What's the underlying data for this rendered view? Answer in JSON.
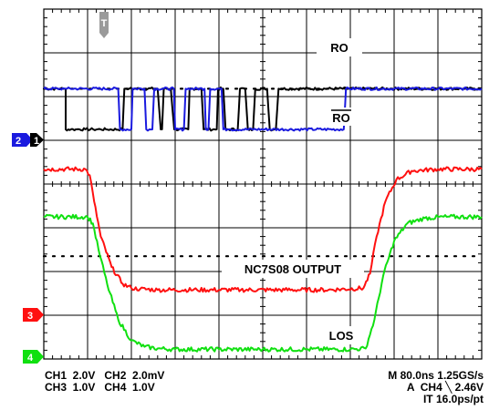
{
  "channel_markers": {
    "ch2": "2",
    "ch1": "1",
    "ch3": "3",
    "ch4": "4"
  },
  "trigger_marker": "T",
  "labels": {
    "ro": "RO",
    "ro_bar": "RO",
    "nc7s08": "NC7S08 OUTPUT",
    "los": "LOS"
  },
  "readout": {
    "left_line1": "CH1  2.0V   CH2  2.0mV",
    "left_line2": "CH3  1.0V   CH4  1.0V",
    "right_line1": "M 80.0ns 1.25GS/s",
    "right_line2": "A  CH4 ╲ 2.46V",
    "right_line3": "IT 16.0ps/pt"
  },
  "colors": {
    "ch1": "#000000",
    "ch2": "#1a1adf",
    "ch3": "#ff1010",
    "ch4": "#10e010",
    "trigger": "#9a9a9a"
  },
  "chart_data": {
    "type": "line",
    "x_divisions": 10,
    "y_divisions": 8,
    "series": [
      {
        "name": "RO",
        "channel": "CH1",
        "color": "#000000",
        "x": [
          0.0,
          0.47,
          0.5,
          0.5,
          0.62,
          0.67,
          0.73,
          0.75,
          0.95,
          1.13,
          1.3,
          1.42,
          1.8,
          1.84,
          1.88,
          1.95,
          2.6,
          2.67,
          2.7,
          2.74,
          2.9,
          2.98,
          3.3,
          3.33,
          3.6,
          3.65,
          3.95,
          3.98,
          4.1,
          4.15,
          4.43,
          4.48,
          4.6,
          4.66,
          4.78,
          4.83,
          5.1,
          5.16,
          5.3,
          5.36,
          10.0
        ],
        "y": [
          6.18,
          6.18,
          6.18,
          5.25,
          5.25,
          5.25,
          5.25,
          5.25,
          5.25,
          5.25,
          5.25,
          5.25,
          5.25,
          6.18,
          6.18,
          6.18,
          6.18,
          5.25,
          5.25,
          6.18,
          6.18,
          5.25,
          5.25,
          6.18,
          6.18,
          5.25,
          5.25,
          6.18,
          6.18,
          5.25,
          5.25,
          6.18,
          6.18,
          5.25,
          5.25,
          6.18,
          6.18,
          5.25,
          5.25,
          6.18,
          6.18
        ]
      },
      {
        "name": "RO",
        "channel": "CH2",
        "color": "#1a1adf",
        "x": [
          0.0,
          0.47,
          0.5,
          0.53,
          1.7,
          1.74,
          2.0,
          2.03,
          2.3,
          2.34,
          2.48,
          2.52,
          2.97,
          3.0,
          3.2,
          3.24,
          3.67,
          3.7,
          3.76,
          3.8,
          4.06,
          4.1,
          4.2,
          4.24,
          6.85,
          6.9,
          10.0
        ],
        "y": [
          6.18,
          6.18,
          6.18,
          6.18,
          6.18,
          5.25,
          5.25,
          6.18,
          6.18,
          5.25,
          5.25,
          6.18,
          6.18,
          5.25,
          5.25,
          6.18,
          6.18,
          5.25,
          5.25,
          6.18,
          6.18,
          5.25,
          5.25,
          5.25,
          5.25,
          6.18,
          6.18
        ]
      },
      {
        "name": "NC7S08 OUTPUT",
        "channel": "CH3",
        "color": "#ff1010",
        "x": [
          0.0,
          0.95,
          1.05,
          1.15,
          1.3,
          1.55,
          1.8,
          2.0,
          2.2,
          2.6,
          3.5,
          4.5,
          5.5,
          6.5,
          7.3,
          7.45,
          7.6,
          7.8,
          8.05,
          8.4,
          9.0,
          10.0
        ],
        "y": [
          4.34,
          4.34,
          4.2,
          3.6,
          2.8,
          2.1,
          1.72,
          1.62,
          1.6,
          1.58,
          1.58,
          1.58,
          1.58,
          1.58,
          1.62,
          1.95,
          2.8,
          3.6,
          4.1,
          4.3,
          4.34,
          4.34
        ]
      },
      {
        "name": "LOS",
        "channel": "CH4",
        "color": "#10e010",
        "x": [
          0.0,
          1.0,
          1.12,
          1.25,
          1.45,
          1.7,
          2.0,
          2.3,
          2.6,
          3.0,
          4.0,
          5.0,
          6.0,
          7.0,
          7.35,
          7.55,
          7.75,
          8.0,
          8.3,
          8.7,
          9.2,
          10.0
        ],
        "y": [
          3.25,
          3.25,
          3.1,
          2.5,
          1.7,
          0.9,
          0.42,
          0.28,
          0.24,
          0.22,
          0.22,
          0.22,
          0.22,
          0.22,
          0.24,
          0.9,
          1.9,
          2.7,
          3.1,
          3.22,
          3.25,
          3.25
        ]
      }
    ],
    "reference_levels": [
      6.18,
      2.35
    ],
    "annotations": [
      "RO",
      "RO",
      "NC7S08 OUTPUT",
      "LOS"
    ]
  }
}
